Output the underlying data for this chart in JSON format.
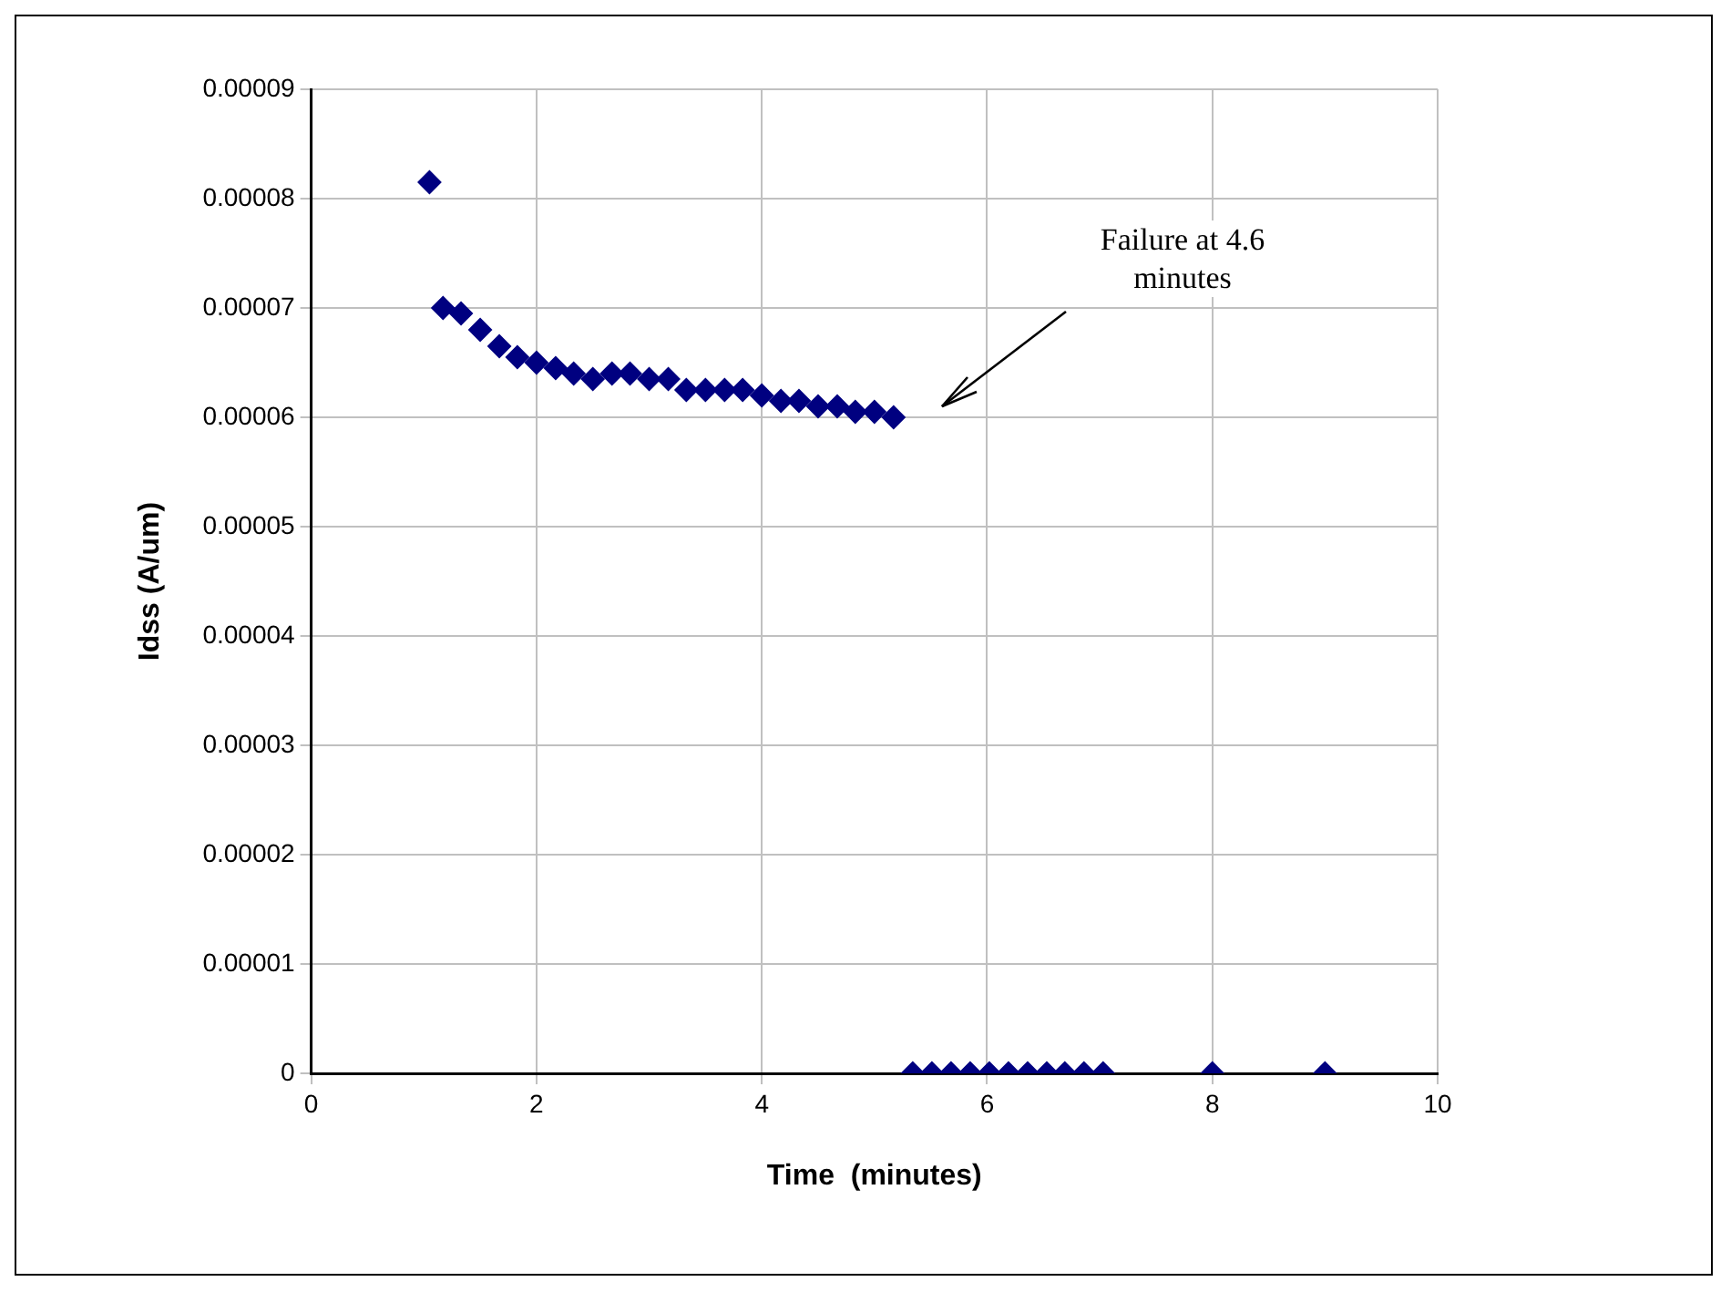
{
  "chart_data": {
    "type": "scatter",
    "xlabel": "Time  (minutes)",
    "ylabel": "Idss (A/um)",
    "series": [
      {
        "color": "#000080",
        "x": [
          1.05,
          1.17,
          1.33,
          1.5,
          1.67,
          1.83,
          2.0,
          2.17,
          2.33,
          2.5,
          2.67,
          2.83,
          3.0,
          3.17,
          3.33,
          3.5,
          3.67,
          3.83,
          4.0,
          4.17,
          4.33,
          4.5,
          4.67,
          4.83,
          5.0,
          5.17,
          5.34,
          5.51,
          5.68,
          5.85,
          6.02,
          6.19,
          6.36,
          6.53,
          6.69,
          6.86,
          7.03,
          8,
          9
        ],
        "values": [
          8.15e-05,
          7e-05,
          6.95e-05,
          6.8e-05,
          6.65e-05,
          6.55e-05,
          6.5e-05,
          6.45e-05,
          6.4e-05,
          6.35e-05,
          6.4e-05,
          6.4e-05,
          6.35e-05,
          6.35e-05,
          6.25e-05,
          6.25e-05,
          6.25e-05,
          6.25e-05,
          6.2e-05,
          6.15e-05,
          6.15e-05,
          6.1e-05,
          6.1e-05,
          6.05e-05,
          6.05e-05,
          6e-05,
          0,
          0,
          0,
          0,
          0,
          0,
          0,
          0,
          0,
          0,
          0,
          0,
          0
        ]
      }
    ],
    "xlim": [
      0,
      10
    ],
    "xticks": [
      0,
      2,
      4,
      6,
      8,
      10
    ],
    "ylim": [
      0,
      9e-05
    ],
    "yticks": [
      0,
      {
        "value": 1e-05,
        "label": "0.00001"
      },
      {
        "value": 2e-05,
        "label": "0.00002"
      },
      {
        "value": 3e-05,
        "label": "0.00003"
      },
      {
        "value": 4e-05,
        "label": "0.00004"
      },
      {
        "value": 5e-05,
        "label": "0.00005"
      },
      {
        "value": 6e-05,
        "label": "0.00006"
      },
      {
        "value": 7e-05,
        "label": "0.00007"
      },
      {
        "value": 8e-05,
        "label": "0.00008"
      },
      {
        "value": 9e-05,
        "label": "0.00009"
      }
    ],
    "grid": true,
    "legend": false,
    "marker": "diamond",
    "annotations": [
      "Failure at 4.6 minutes"
    ]
  }
}
